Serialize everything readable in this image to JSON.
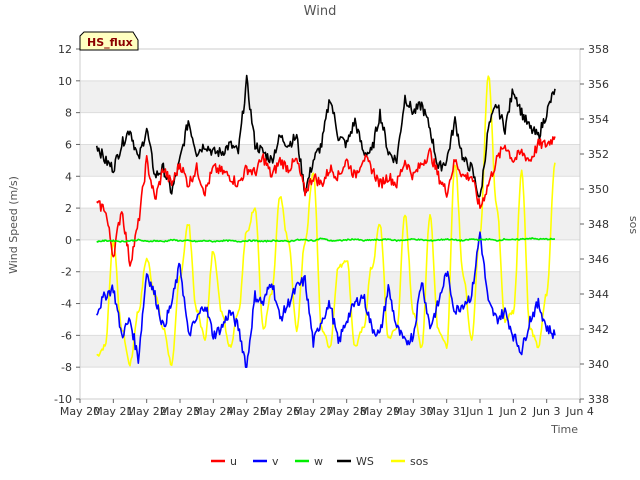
{
  "chart_data": {
    "type": "line",
    "title": "Wind",
    "xlabel": "Time",
    "ylabel": "Wind Speed (m/s)",
    "y2label": "sos",
    "badge": "HS_flux",
    "xlim": [
      0,
      15
    ],
    "ylim": [
      -10,
      12
    ],
    "y2lim": [
      338,
      358
    ],
    "grid": "horizontal bands",
    "legend_position": "bottom-center",
    "x_ticks": [
      {
        "v": 0,
        "label": "May 20"
      },
      {
        "v": 1,
        "label": "May 21"
      },
      {
        "v": 2,
        "label": "May 22"
      },
      {
        "v": 3,
        "label": "May 23"
      },
      {
        "v": 4,
        "label": "May 24"
      },
      {
        "v": 5,
        "label": "May 25"
      },
      {
        "v": 6,
        "label": "May 26"
      },
      {
        "v": 7,
        "label": "May 27"
      },
      {
        "v": 8,
        "label": "May 28"
      },
      {
        "v": 9,
        "label": "May 29"
      },
      {
        "v": 10,
        "label": "May 30"
      },
      {
        "v": 11,
        "label": "May 31"
      },
      {
        "v": 12,
        "label": "Jun 1"
      },
      {
        "v": 13,
        "label": "Jun 2"
      },
      {
        "v": 14,
        "label": "Jun 3"
      },
      {
        "v": 15,
        "label": "Jun 4"
      }
    ],
    "y_ticks": [
      -10,
      -8,
      -6,
      -4,
      -2,
      0,
      2,
      4,
      6,
      8,
      10,
      12
    ],
    "y2_ticks": [
      338,
      340,
      342,
      344,
      346,
      348,
      350,
      352,
      354,
      356,
      358
    ],
    "x": [
      0.5,
      0.75,
      1.0,
      1.25,
      1.5,
      1.75,
      2.0,
      2.25,
      2.5,
      2.75,
      3.0,
      3.25,
      3.5,
      3.75,
      4.0,
      4.25,
      4.5,
      4.75,
      5.0,
      5.25,
      5.5,
      5.75,
      6.0,
      6.25,
      6.5,
      6.75,
      7.0,
      7.25,
      7.5,
      7.75,
      8.0,
      8.25,
      8.5,
      8.75,
      9.0,
      9.25,
      9.5,
      9.75,
      10.0,
      10.25,
      10.5,
      10.75,
      11.0,
      11.25,
      11.5,
      11.75,
      12.0,
      12.25,
      12.5,
      12.75,
      13.0,
      13.25,
      13.5,
      13.75,
      14.0,
      14.25
    ],
    "series": [
      {
        "name": "u",
        "color": "#ff0000",
        "axis": "left",
        "values": [
          2.2,
          2.0,
          -1.0,
          2.0,
          -1.5,
          1.0,
          5.0,
          2.5,
          4.5,
          3.5,
          4.8,
          3.5,
          4.5,
          3.0,
          4.5,
          4.3,
          4.0,
          3.5,
          4.5,
          4.2,
          5.2,
          4.0,
          5.0,
          4.5,
          5.0,
          3.0,
          4.0,
          3.5,
          4.5,
          4.0,
          5.0,
          4.0,
          5.2,
          4.5,
          3.5,
          4.0,
          3.5,
          5.0,
          4.0,
          4.8,
          5.5,
          4.0,
          3.0,
          5.0,
          4.0,
          4.0,
          2.0,
          3.5,
          5.0,
          6.0,
          5.0,
          5.5,
          5.0,
          6.0,
          6.0,
          6.5
        ]
      },
      {
        "name": "v",
        "color": "#0000ff",
        "axis": "left",
        "values": [
          -4.5,
          -3.5,
          -3.0,
          -6.0,
          -5.0,
          -7.5,
          -2.0,
          -3.5,
          -5.5,
          -4.0,
          -1.5,
          -6.0,
          -5.0,
          -4.0,
          -6.0,
          -5.5,
          -4.5,
          -5.5,
          -8.0,
          -3.5,
          -4.0,
          -2.5,
          -5.0,
          -4.0,
          -3.0,
          -2.5,
          -6.5,
          -5.0,
          -4.0,
          -6.5,
          -5.0,
          -4.0,
          -3.5,
          -5.5,
          -6.0,
          -3.0,
          -5.5,
          -6.5,
          -6.0,
          -2.5,
          -5.5,
          -4.0,
          -2.0,
          -4.5,
          -4.0,
          -3.5,
          0.5,
          -4.0,
          -5.0,
          -4.5,
          -6.0,
          -7.0,
          -5.0,
          -4.0,
          -5.5,
          -6.0
        ]
      },
      {
        "name": "w",
        "color": "#00ee00",
        "axis": "left",
        "values": [
          -0.1,
          -0.05,
          -0.05,
          -0.1,
          -0.05,
          0.0,
          -0.1,
          -0.05,
          -0.1,
          0.0,
          -0.05,
          -0.05,
          -0.1,
          -0.05,
          -0.1,
          -0.05,
          -0.05,
          -0.1,
          -0.05,
          -0.05,
          -0.1,
          -0.05,
          -0.05,
          -0.1,
          0.0,
          0.0,
          -0.05,
          0.1,
          -0.05,
          -0.05,
          0.0,
          0.05,
          -0.05,
          0.0,
          0.0,
          0.05,
          -0.05,
          0.0,
          0.05,
          0.0,
          -0.05,
          0.0,
          0.05,
          0.0,
          -0.05,
          0.05,
          0.0,
          0.05,
          -0.05,
          0.05,
          0.0,
          0.05,
          0.1,
          0.05,
          0.05,
          0.05
        ]
      },
      {
        "name": "WS",
        "color": "#000000",
        "axis": "left",
        "values": [
          6.0,
          5.0,
          4.5,
          6.0,
          7.0,
          5.0,
          7.0,
          4.0,
          4.5,
          3.0,
          5.0,
          7.5,
          5.5,
          6.0,
          5.5,
          5.5,
          6.0,
          5.5,
          10.0,
          6.0,
          5.5,
          5.0,
          6.5,
          6.0,
          6.5,
          3.0,
          5.0,
          6.0,
          9.0,
          6.5,
          6.0,
          7.5,
          5.5,
          5.5,
          8.0,
          5.5,
          5.0,
          9.0,
          8.0,
          8.5,
          7.0,
          4.5,
          5.0,
          7.5,
          5.0,
          4.5,
          2.5,
          7.0,
          8.5,
          7.0,
          9.5,
          8.0,
          7.0,
          6.5,
          8.0,
          9.5
        ]
      },
      {
        "name": "sos",
        "color": "#ffff00",
        "axis": "right",
        "values": [
          340.5,
          341.0,
          347.0,
          342.0,
          340.0,
          343.0,
          346.0,
          344.0,
          342.0,
          340.0,
          345.0,
          348.0,
          343.0,
          341.5,
          346.5,
          343.0,
          341.0,
          343.0,
          347.5,
          349.0,
          342.0,
          344.0,
          349.5,
          347.0,
          342.0,
          347.0,
          351.0,
          342.0,
          341.0,
          345.5,
          346.0,
          341.0,
          342.0,
          345.5,
          348.0,
          341.5,
          342.0,
          348.5,
          343.0,
          341.0,
          348.5,
          342.0,
          341.0,
          351.5,
          345.0,
          341.5,
          347.5,
          356.5,
          349.0,
          342.5,
          343.0,
          351.0,
          342.0,
          341.0,
          344.0,
          351.5
        ]
      }
    ]
  }
}
